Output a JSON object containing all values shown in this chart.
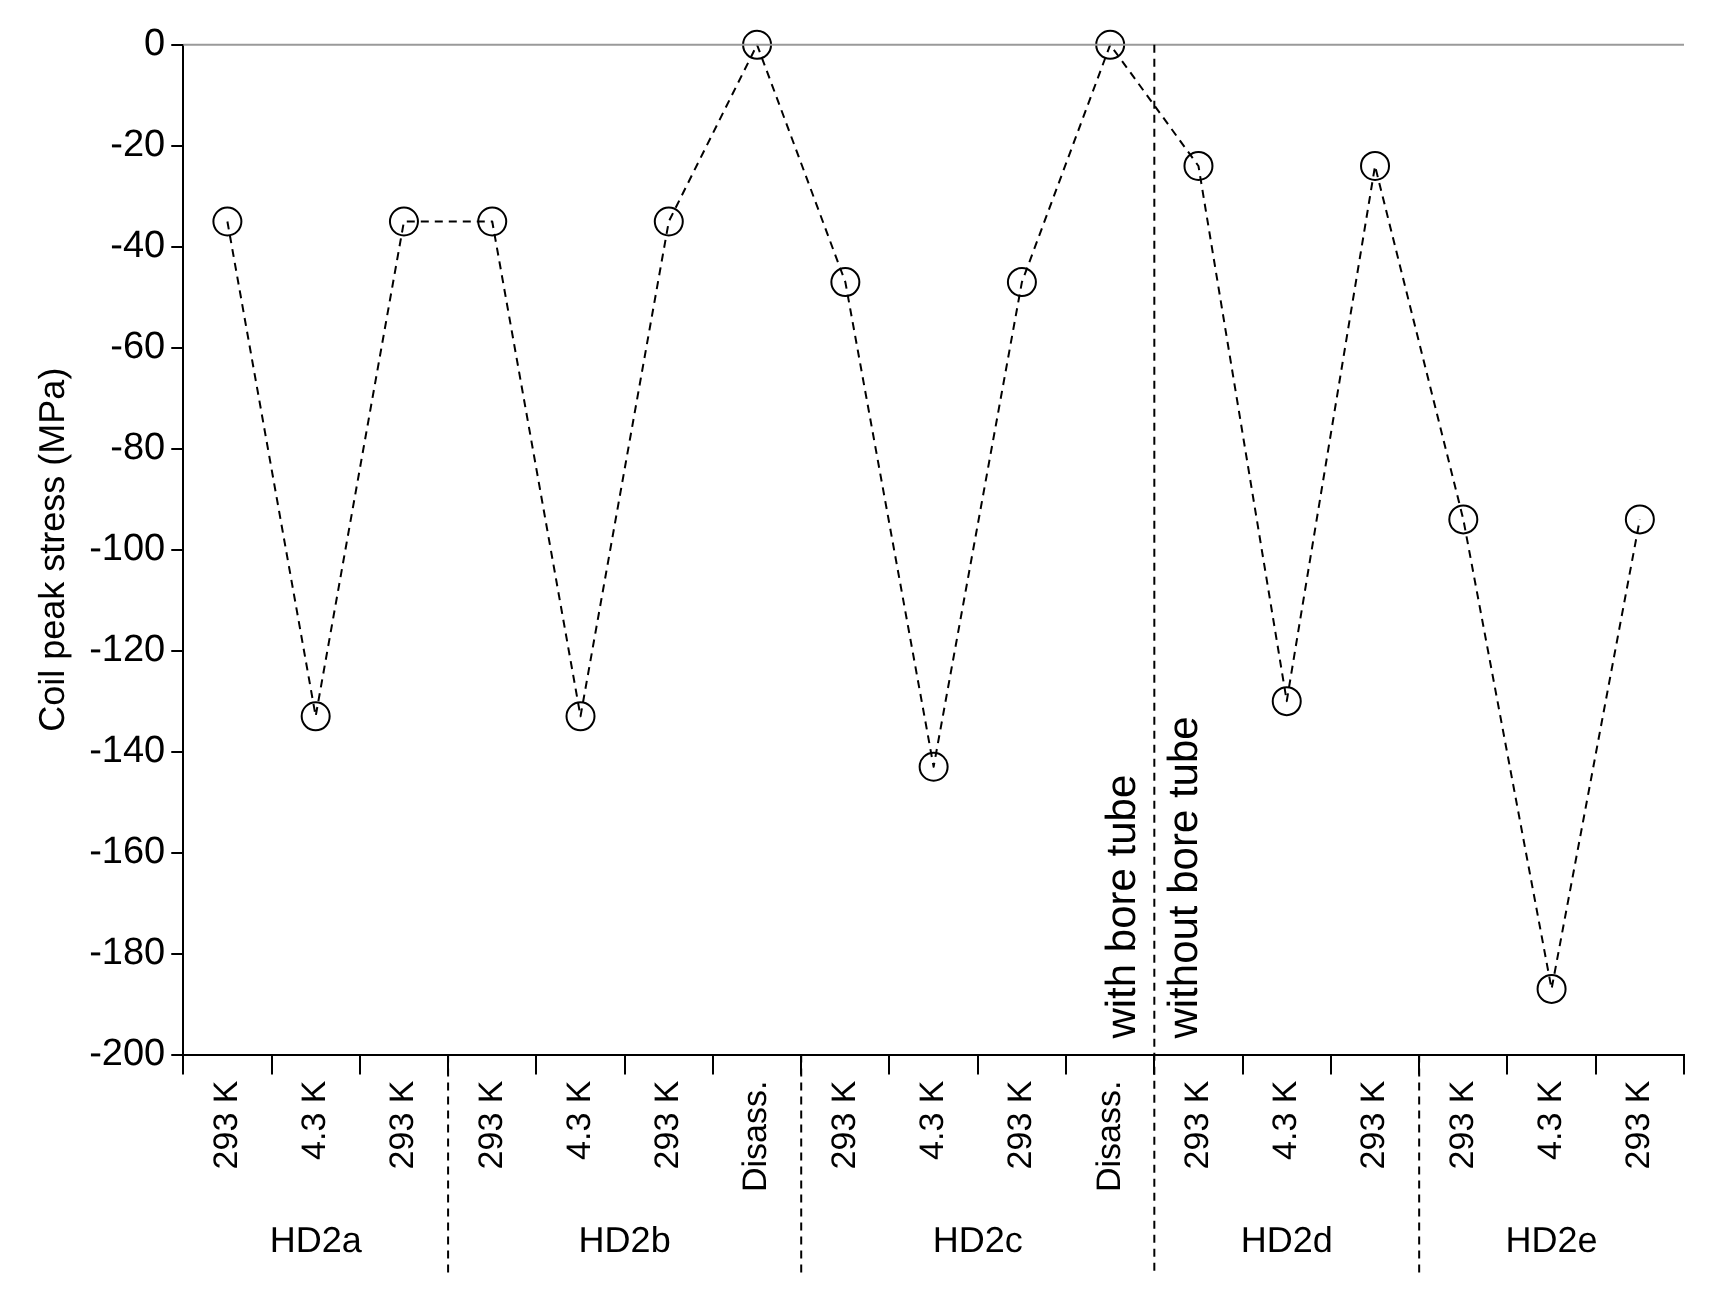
{
  "chart_data": {
    "type": "line",
    "ylabel": "Coil peak stress (MPa)",
    "categories": [
      "293 K",
      "4.3 K",
      "293 K",
      "293 K",
      "4.3 K",
      "293 K",
      "Disass.",
      "293 K",
      "4.3 K",
      "293 K",
      "Disass.",
      "293 K",
      "4.3 K",
      "293 K",
      "293 K",
      "4.3 K",
      "293 K"
    ],
    "series": [
      {
        "color": "#000000",
        "values": [
          -35,
          -133,
          -35,
          -35,
          -133,
          -35,
          0,
          -47,
          -143,
          -47,
          0,
          -24,
          -130,
          -24,
          -94,
          -187,
          -94
        ]
      }
    ],
    "ylim": [
      -200,
      0
    ],
    "yticks": [
      -200,
      -180,
      -160,
      -140,
      -120,
      -100,
      -80,
      -60,
      -40,
      -20,
      0
    ],
    "grid": false,
    "legend": false,
    "marker": "circle",
    "line_style": "dashed",
    "annotations": [
      "HD2a",
      "HD2b",
      "HD2c",
      "HD2d",
      "HD2e",
      "with bore tube",
      "without bore tube"
    ]
  }
}
